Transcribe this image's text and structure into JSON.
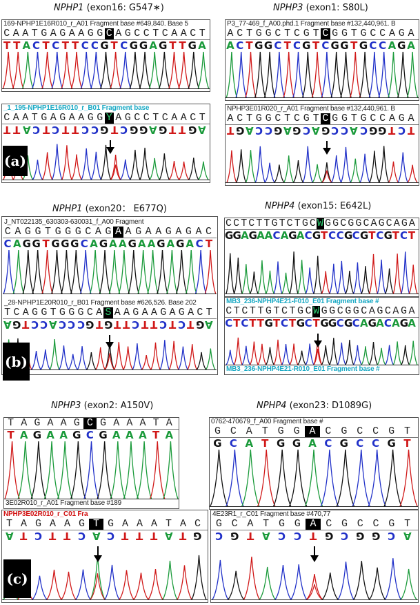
{
  "figure": {
    "panels": [
      {
        "id": "a",
        "label": "(a)",
        "left": {
          "gene": "NPHP1",
          "mutation": " (exon16: G547∗)",
          "reference": {
            "header": "169-NPHP1E16R010_r_A01 Fragment base #649,840. Base 5",
            "sequence": [
              "C",
              "A",
              "A",
              "T",
              "G",
              "A",
              "G",
              "A",
              "A",
              "G",
              "G",
              "C",
              "A",
              "G",
              "C",
              "C",
              "T",
              "C",
              "A",
              "A",
              "C",
              "T"
            ],
            "highlight_index": 11,
            "calls": [
              "T",
              "T",
              "A",
              "C",
              "T",
              "C",
              "T",
              "T",
              "C",
              "C",
              "G",
              "T",
              "C",
              "G",
              "G",
              "A",
              "G",
              "T",
              "T",
              "G",
              "A"
            ]
          },
          "patient": {
            "header": "_1_195-NPHP1E16R010_r_B01 Fragment base",
            "sequence": [
              "C",
              "A",
              "A",
              "T",
              "G",
              "A",
              "G",
              "A",
              "A",
              "G",
              "G",
              "Y",
              "A",
              "G",
              "C",
              "C",
              "T",
              "C",
              "A",
              "A",
              "C",
              "T"
            ],
            "highlight_index": 11,
            "calls": [
              "T",
              "T",
              "A",
              "C",
              "T",
              "C",
              "T",
              "T",
              "C",
              "C",
              "G",
              "T",
              "C",
              "G",
              "G",
              "A",
              "G",
              "T",
              "T",
              "G",
              "A"
            ]
          }
        },
        "right": {
          "gene": "NPHP3",
          "mutation": " (exon1: S80L)",
          "reference": {
            "header": "P3_77-469_f_A00.phd.1 Fragment base #132,440,961. B",
            "sequence": [
              "A",
              "C",
              "T",
              "G",
              "G",
              "C",
              "T",
              "C",
              "G",
              "T",
              "C",
              "G",
              "G",
              "T",
              "G",
              "C",
              "C",
              "A",
              "G",
              "A"
            ],
            "highlight_index": 10,
            "calls": [
              "A",
              "C",
              "T",
              "G",
              "G",
              "C",
              "T",
              "C",
              "G",
              "T",
              "C",
              "G",
              "G",
              "T",
              "G",
              "C",
              "C",
              "A",
              "G",
              "A"
            ]
          },
          "patient": {
            "header": "NPHP3E01R020_r_A01 Fragment base #132,440,961. B",
            "sequence": [
              "A",
              "C",
              "T",
              "G",
              "G",
              "C",
              "T",
              "C",
              "G",
              "T",
              "C",
              "G",
              "G",
              "T",
              "G",
              "C",
              "C",
              "A",
              "G",
              "A"
            ],
            "highlight_index": 10,
            "calls": [
              "T",
              "G",
              "A",
              "C",
              "C",
              "G",
              "A",
              "G",
              "C",
              "A",
              "G",
              "C",
              "C",
              "A",
              "C",
              "G",
              "G",
              "T",
              "C",
              "T"
            ]
          }
        }
      },
      {
        "id": "b",
        "label": "(b)",
        "left": {
          "gene": "NPHP1",
          "mutation": "  (exon20： E677Q)",
          "reference": {
            "header": "J_NT022135_630303-630031_f_A00 Fragment",
            "sequence": [
              "C",
              "A",
              "G",
              "G",
              "T",
              "G",
              "G",
              "G",
              "C",
              "A",
              "G",
              "A",
              "A",
              "G",
              "A",
              "A",
              "G",
              "A",
              "G",
              "A",
              "C"
            ],
            "highlight_index": 11,
            "calls": [
              "C",
              "A",
              "G",
              "G",
              "T",
              "G",
              "G",
              "G",
              "C",
              "A",
              "G",
              "A",
              "A",
              "G",
              "A",
              "A",
              "G",
              "A",
              "G",
              "A",
              "C",
              "T"
            ]
          },
          "patient": {
            "header": "_28-NPHP1E20R010_r_B01 Fragment base #626,526. Base 202",
            "sequence": [
              "T",
              "C",
              "A",
              "G",
              "G",
              "T",
              "G",
              "G",
              "G",
              "C",
              "A",
              "S",
              "A",
              "A",
              "G",
              "A",
              "A",
              "G",
              "A",
              "G",
              "A",
              "C",
              "T"
            ],
            "highlight_index": 11,
            "calls": [
              "A",
              "G",
              "T",
              "C",
              "C",
              "A",
              "C",
              "C",
              "C",
              "G",
              "T",
              "G",
              "T",
              "T",
              "C",
              "T",
              "T",
              "C",
              "T",
              "C",
              "T",
              "G",
              "A"
            ]
          }
        },
        "right": {
          "gene": "NPHP4",
          "mutation": " (exon15: E642L)",
          "reference": {
            "header": "",
            "sequence": [
              "C",
              "C",
              "T",
              "C",
              "T",
              "T",
              "G",
              "T",
              "C",
              "T",
              "G",
              "C",
              "W",
              "G",
              "G",
              "C",
              "G",
              "G",
              "C",
              "A",
              "G",
              "C",
              "A",
              "G",
              "A"
            ],
            "highlight_index": 12,
            "calls": [
              "G",
              "G",
              "A",
              "G",
              "A",
              "A",
              "C",
              "A",
              "G",
              "A",
              "C",
              "G",
              "T",
              "C",
              "C",
              "G",
              "C",
              "G",
              "T",
              "C",
              "G",
              "T",
              "C",
              "T"
            ]
          },
          "patient": {
            "header_top": "MB3_236-NPHP4E21-F010_E01 Fragment base #",
            "sequence": [
              "C",
              "T",
              "C",
              "T",
              "T",
              "G",
              "T",
              "C",
              "T",
              "G",
              "C",
              "W",
              "G",
              "G",
              "C",
              "G",
              "G",
              "C",
              "A",
              "G",
              "C",
              "A",
              "G",
              "A"
            ],
            "highlight_index": 11,
            "calls": [
              "C",
              "T",
              "C",
              "T",
              "T",
              "G",
              "T",
              "C",
              "T",
              "G",
              "C",
              "T",
              "G",
              "G",
              "C",
              "G",
              "C",
              "A",
              "G",
              "A",
              "C",
              "A",
              "G",
              "A"
            ],
            "header_bottom": "MB3_236-NPHP4E21-R010_E01 Fragment base #"
          }
        }
      },
      {
        "id": "c",
        "label": "(c)",
        "left": {
          "gene": "NPHP3",
          "mutation": " (exon2: A150V)",
          "reference": {
            "header": "",
            "sequence": [
              "T",
              "A",
              "G",
              "A",
              "A",
              "G",
              "C",
              "G",
              "A",
              "A",
              "A",
              "T",
              "A"
            ],
            "highlight_index": 6,
            "calls": [
              "T",
              "A",
              "G",
              "A",
              "A",
              "G",
              "C",
              "G",
              "A",
              "A",
              "A",
              "T",
              "A"
            ],
            "footer": "3E02R010_r_A01 Fragment base #189"
          },
          "patient": {
            "header": "NPHP3E02R010_r_C01 Fra",
            "sequence": [
              "T",
              "A",
              "G",
              "A",
              "A",
              "G",
              "T",
              "G",
              "A",
              "A",
              "A",
              "T",
              "A",
              "C"
            ],
            "highlight_index": 6,
            "calls": [
              "A",
              "T",
              "C",
              "T",
              "T",
              "C",
              "A",
              "C",
              "T",
              "T",
              "T",
              "A",
              "T",
              "G"
            ]
          }
        },
        "right": {
          "gene": "NPHP4",
          "mutation": " (exon23: D1089G)",
          "reference": {
            "header": "0762-470679_f_A00 Fragment base #",
            "sequence": [
              "G",
              "C",
              "A",
              "T",
              "G",
              "G",
              "A",
              "C",
              "G",
              "C",
              "C",
              "G",
              "T"
            ],
            "highlight_index": 6,
            "calls": [
              "G",
              "C",
              "A",
              "T",
              "G",
              "G",
              "A",
              "C",
              "G",
              "C",
              "C",
              "G",
              "T"
            ]
          },
          "patient": {
            "header": "4E23R1_r_C01 Fragment base #470,77",
            "sequence": [
              "G",
              "C",
              "A",
              "T",
              "G",
              "G",
              "A",
              "C",
              "G",
              "C",
              "C",
              "G",
              "T"
            ],
            "highlight_index": 6,
            "calls": [
              "C",
              "G",
              "T",
              "A",
              "C",
              "C",
              "T",
              "G",
              "C",
              "G",
              "G",
              "C",
              "A"
            ]
          }
        }
      }
    ]
  },
  "colors": {
    "A": "#1a9a3a",
    "C": "#2030c8",
    "G": "#111111",
    "T": "#d01818",
    "header_cyan": "#19a9c4",
    "header_red": "#d01010"
  }
}
